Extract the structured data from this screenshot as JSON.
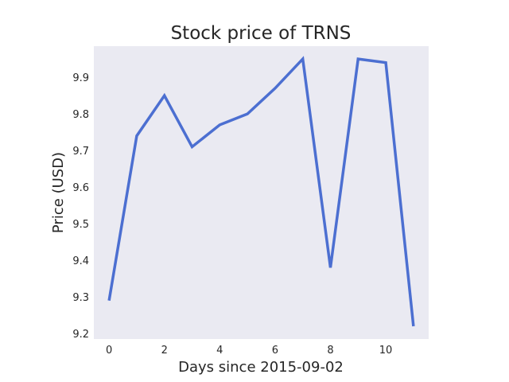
{
  "chart_data": {
    "type": "line",
    "title": "Stock price of TRNS",
    "xlabel": "Days since 2015-09-02",
    "ylabel": "Price (USD)",
    "x": [
      0,
      1,
      2,
      3,
      4,
      5,
      6,
      7,
      8,
      9,
      10,
      11
    ],
    "series": [
      {
        "values": [
          9.29,
          9.74,
          9.85,
          9.71,
          9.77,
          9.8,
          9.87,
          9.95,
          9.38,
          9.95,
          9.94,
          9.22
        ]
      }
    ],
    "xticks": [
      "0",
      "2",
      "4",
      "6",
      "8",
      "10"
    ],
    "yticks": [
      "9.2",
      "9.3",
      "9.4",
      "9.5",
      "9.6",
      "9.7",
      "9.8",
      "9.9"
    ],
    "xlim": [
      -0.55,
      11.55
    ],
    "ylim": [
      9.185,
      9.985
    ],
    "grid": false,
    "colors": {
      "line": "#4c6fd1",
      "plot_bg": "#eaeaf2"
    }
  }
}
